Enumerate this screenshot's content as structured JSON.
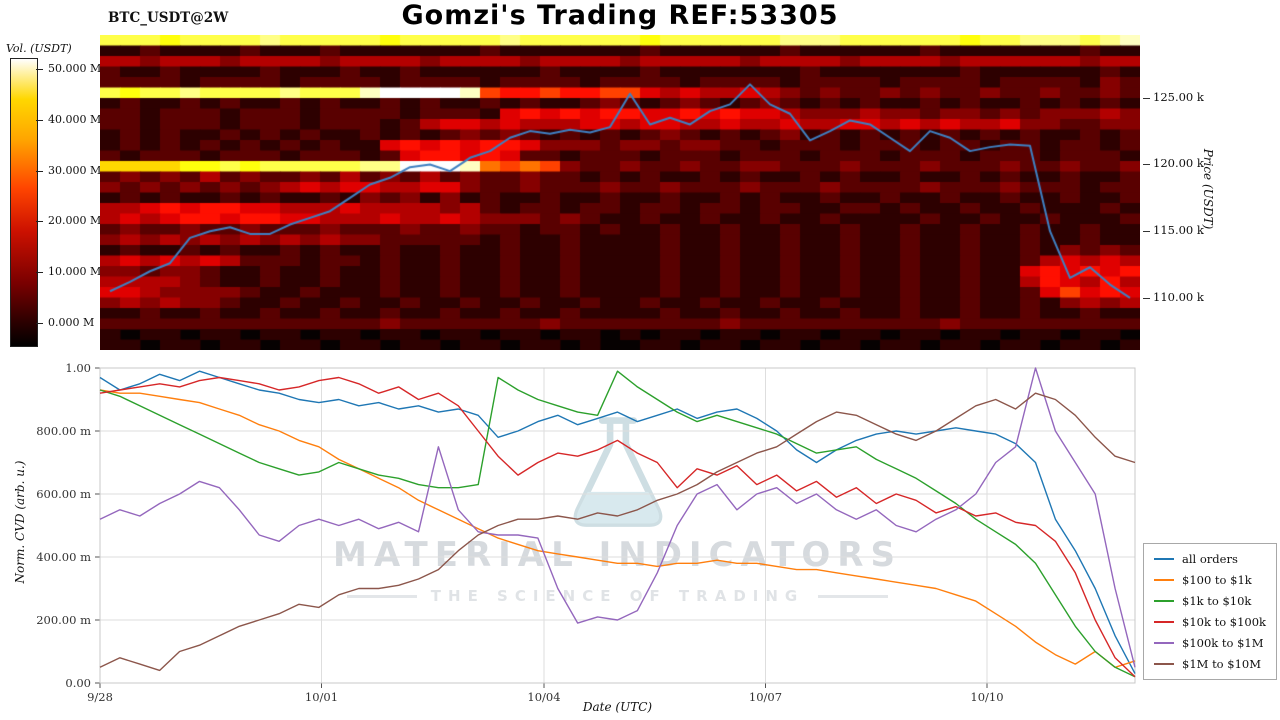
{
  "header": {
    "title": "Gomzi's Trading REF:53305",
    "symbol_label": "BTC_USDT@2W"
  },
  "watermark": {
    "line1": "MATERIAL INDICATORS",
    "line2": "THE SCIENCE OF TRADING"
  },
  "chart_data": [
    {
      "type": "heatmap",
      "title": "Gomzi's Trading REF:53305",
      "symbol": "BTC_USDT@2W",
      "colorbar_label": "Vol. (USDT)",
      "colorbar_ticks": [
        "50.000 M",
        "40.000 M",
        "30.000 M",
        "20.000 M",
        "10.000 M",
        "0.000 M"
      ],
      "price_axis_label": "Price (USDT)",
      "price_ticks": [
        {
          "label": "125.00 k",
          "value": 125
        },
        {
          "label": "120.00 k",
          "value": 120
        },
        {
          "label": "115.00 k",
          "value": 115
        },
        {
          "label": "110.00 k",
          "value": 110
        }
      ],
      "price_range_k": [
        106.1,
        129.7
      ],
      "volume_scale_M": [
        0,
        50
      ],
      "rows": 30,
      "cols": 52,
      "intensity_rows_hex": [
        [
          "cccbccccdcccc",
          "cbcccccdccccc",
          "cbccccccdddcc",
          "ccccbccdddcde"
        ],
        [
          "1121111211121",
          "1111112111111",
          "1211111121111",
          "1121111111211"
        ],
        [
          "4434443444434",
          "4443444434444",
          "3444443444434",
          "4443444444344"
        ],
        [
          "2112111121112",
          "1121111112111",
          "1211111112111",
          "1111211111121"
        ],
        [
          "2222122221222",
          "2122221222212",
          "2221222212222",
          "1222212222132"
        ],
        [
          "cbccdccccdccc",
          "effffe7667667",
          "7545445432322",
          "3232232232232"
        ],
        [
          "1211212112121",
          "1212112121123",
          "2123212321212",
          "1121211212121"
        ],
        [
          "2212221222122",
          "2212221565656",
          "6556565543334",
          "3323323233343"
        ],
        [
          "2212221222122",
          "2124554544455",
          "4554454454455",
          "4545445332233"
        ],
        [
          "1212112121211",
          "2121232321212",
          "1232121231212",
          "1212121211212"
        ],
        [
          "1212121212121",
          "1565656653332",
          "3323322122212",
          "2212212212212"
        ],
        [
          "2122212221222",
          "1256656522122",
          "2122212221222",
          "1222122212221"
        ],
        [
          "aaaabbcbccccc",
          "ddfffe8787322",
          "3223223322232",
          "2232223223223"
        ],
        [
          "2323242322324",
          "2324232232212",
          "1211212112121",
          "1211212112112"
        ],
        [
          "3232323234545",
          "5445532232223",
          "2232223222322",
          "2232223222122"
        ],
        [
          "1212112121121",
          "3231312112112",
          "1121121211211",
          "2112112112112"
        ],
        [
          "4456566554445",
          "4444342122122",
          "1221221221122",
          "1211211211121"
        ],
        [
          "4545665665544",
          "4544543332321",
          "1211211211211",
          "1121121121112"
        ],
        [
          "2322322322232",
          "2232232212212",
          "1121121121121",
          "1211211211211"
        ],
        [
          "3434343434343",
          "3222221211211",
          "1121121121121",
          "1211211211211"
        ],
        [
          "1211212112121",
          "1211211211211",
          "1121121121121",
          "1211211213232"
        ],
        [
          "4545454222122",
          "1211211211211",
          "1121121121121",
          "1211211245454"
        ],
        [
          "3323321121121",
          "1211211211211",
          "1121121121121",
          "1211211565656"
        ],
        [
          "4444321121121",
          "1211211211211",
          "1121121121121",
          "1211211465464"
        ],
        [
          "5543333211211",
          "1211211211211",
          "1121121121121",
          "1211211257565"
        ],
        [
          "3434332112112",
          "1121121121121",
          "1211211211211",
          "1211211213434"
        ],
        [
          "1121121121121",
          "1211211211211",
          "1121121121121",
          "1211211211211"
        ],
        [
          "2222222222222",
          "2322222223222",
          "2222232222222",
          "2223222222222"
        ],
        [
          "1011011011011",
          "0110110110110",
          "1011011011011",
          "0110110110110"
        ],
        [
          "1101101101101",
          "1011011011010",
          "0110110110110",
          "1101101101101"
        ]
      ],
      "price_line_color": "#3e7fc1",
      "price_line_k": [
        110.5,
        111.2,
        112.0,
        112.6,
        114.5,
        115.0,
        115.3,
        114.8,
        114.8,
        115.5,
        116.0,
        116.5,
        117.5,
        118.5,
        119.0,
        119.8,
        120.0,
        119.5,
        120.5,
        121.0,
        122.0,
        122.5,
        122.3,
        122.6,
        122.4,
        122.8,
        125.3,
        123.0,
        123.5,
        123.0,
        124.0,
        124.5,
        126.0,
        124.5,
        123.8,
        121.8,
        122.5,
        123.3,
        123.0,
        122.0,
        121.0,
        122.5,
        122.0,
        121.0,
        121.3,
        121.5,
        121.4,
        115.0,
        111.5,
        112.3,
        111.0,
        110.0
      ]
    },
    {
      "type": "line",
      "xlabel": "Date (UTC)",
      "ylabel": "Norm. CVD (arb. u.)",
      "ylim": [
        0,
        1
      ],
      "grid": true,
      "legend_position": "right",
      "yticks": [
        {
          "label": "1.00",
          "value": 1.0
        },
        {
          "label": "800.00 m",
          "value": 0.8
        },
        {
          "label": "600.00 m",
          "value": 0.6
        },
        {
          "label": "400.00 m",
          "value": 0.4
        },
        {
          "label": "200.00 m",
          "value": 0.2
        },
        {
          "label": "0.00",
          "value": 0.0
        }
      ],
      "xticks": [
        {
          "label": "9/28",
          "pos": 0
        },
        {
          "label": "10/01",
          "pos": 0.214
        },
        {
          "label": "10/04",
          "pos": 0.429
        },
        {
          "label": "10/07",
          "pos": 0.643
        },
        {
          "label": "10/10",
          "pos": 0.857
        }
      ],
      "series": [
        {
          "name": "all orders",
          "color": "#1f77b4",
          "values": [
            0.97,
            0.93,
            0.95,
            0.98,
            0.96,
            0.99,
            0.97,
            0.95,
            0.93,
            0.92,
            0.9,
            0.89,
            0.9,
            0.88,
            0.89,
            0.87,
            0.88,
            0.86,
            0.87,
            0.85,
            0.78,
            0.8,
            0.83,
            0.85,
            0.82,
            0.84,
            0.86,
            0.83,
            0.85,
            0.87,
            0.84,
            0.86,
            0.87,
            0.84,
            0.8,
            0.74,
            0.7,
            0.74,
            0.77,
            0.79,
            0.8,
            0.79,
            0.8,
            0.81,
            0.8,
            0.79,
            0.76,
            0.7,
            0.52,
            0.42,
            0.3,
            0.15,
            0.03
          ]
        },
        {
          "name": "$100 to $1k",
          "color": "#ff7f0e",
          "values": [
            0.93,
            0.92,
            0.92,
            0.91,
            0.9,
            0.89,
            0.87,
            0.85,
            0.82,
            0.8,
            0.77,
            0.75,
            0.71,
            0.68,
            0.65,
            0.62,
            0.58,
            0.55,
            0.52,
            0.49,
            0.46,
            0.44,
            0.42,
            0.41,
            0.4,
            0.39,
            0.38,
            0.38,
            0.37,
            0.38,
            0.38,
            0.39,
            0.38,
            0.38,
            0.37,
            0.36,
            0.36,
            0.35,
            0.34,
            0.33,
            0.32,
            0.31,
            0.3,
            0.28,
            0.26,
            0.22,
            0.18,
            0.13,
            0.09,
            0.06,
            0.1,
            0.05,
            0.07
          ]
        },
        {
          "name": "$1k to $10k",
          "color": "#2ca02c",
          "values": [
            0.93,
            0.91,
            0.88,
            0.85,
            0.82,
            0.79,
            0.76,
            0.73,
            0.7,
            0.68,
            0.66,
            0.67,
            0.7,
            0.68,
            0.66,
            0.65,
            0.63,
            0.62,
            0.62,
            0.63,
            0.97,
            0.93,
            0.9,
            0.88,
            0.86,
            0.85,
            0.99,
            0.94,
            0.9,
            0.86,
            0.83,
            0.85,
            0.83,
            0.81,
            0.79,
            0.76,
            0.73,
            0.74,
            0.75,
            0.71,
            0.68,
            0.65,
            0.61,
            0.57,
            0.52,
            0.48,
            0.44,
            0.38,
            0.28,
            0.18,
            0.1,
            0.05,
            0.02
          ]
        },
        {
          "name": "$10k to $100k",
          "color": "#d62728",
          "values": [
            0.92,
            0.93,
            0.94,
            0.95,
            0.94,
            0.96,
            0.97,
            0.96,
            0.95,
            0.93,
            0.94,
            0.96,
            0.97,
            0.95,
            0.92,
            0.94,
            0.9,
            0.92,
            0.88,
            0.8,
            0.72,
            0.66,
            0.7,
            0.73,
            0.72,
            0.74,
            0.77,
            0.73,
            0.7,
            0.62,
            0.68,
            0.66,
            0.69,
            0.63,
            0.66,
            0.61,
            0.64,
            0.59,
            0.62,
            0.57,
            0.6,
            0.58,
            0.54,
            0.56,
            0.53,
            0.54,
            0.51,
            0.5,
            0.45,
            0.35,
            0.2,
            0.08,
            0.02
          ]
        },
        {
          "name": "$100k to $1M",
          "color": "#9467bd",
          "values": [
            0.52,
            0.55,
            0.53,
            0.57,
            0.6,
            0.64,
            0.62,
            0.55,
            0.47,
            0.45,
            0.5,
            0.52,
            0.5,
            0.52,
            0.49,
            0.51,
            0.48,
            0.75,
            0.55,
            0.48,
            0.47,
            0.47,
            0.46,
            0.3,
            0.19,
            0.21,
            0.2,
            0.23,
            0.35,
            0.5,
            0.6,
            0.63,
            0.55,
            0.6,
            0.62,
            0.57,
            0.6,
            0.55,
            0.52,
            0.55,
            0.5,
            0.48,
            0.52,
            0.55,
            0.6,
            0.7,
            0.75,
            1.0,
            0.8,
            0.7,
            0.6,
            0.3,
            0.05
          ]
        },
        {
          "name": "$1M to $10M",
          "color": "#8c564b",
          "values": [
            0.05,
            0.08,
            0.06,
            0.04,
            0.1,
            0.12,
            0.15,
            0.18,
            0.2,
            0.22,
            0.25,
            0.24,
            0.28,
            0.3,
            0.3,
            0.31,
            0.33,
            0.36,
            0.42,
            0.47,
            0.5,
            0.52,
            0.52,
            0.53,
            0.52,
            0.54,
            0.53,
            0.55,
            0.58,
            0.6,
            0.63,
            0.67,
            0.7,
            0.73,
            0.75,
            0.79,
            0.83,
            0.86,
            0.85,
            0.82,
            0.79,
            0.77,
            0.8,
            0.84,
            0.88,
            0.9,
            0.87,
            0.92,
            0.9,
            0.85,
            0.78,
            0.72,
            0.7
          ]
        }
      ]
    }
  ]
}
